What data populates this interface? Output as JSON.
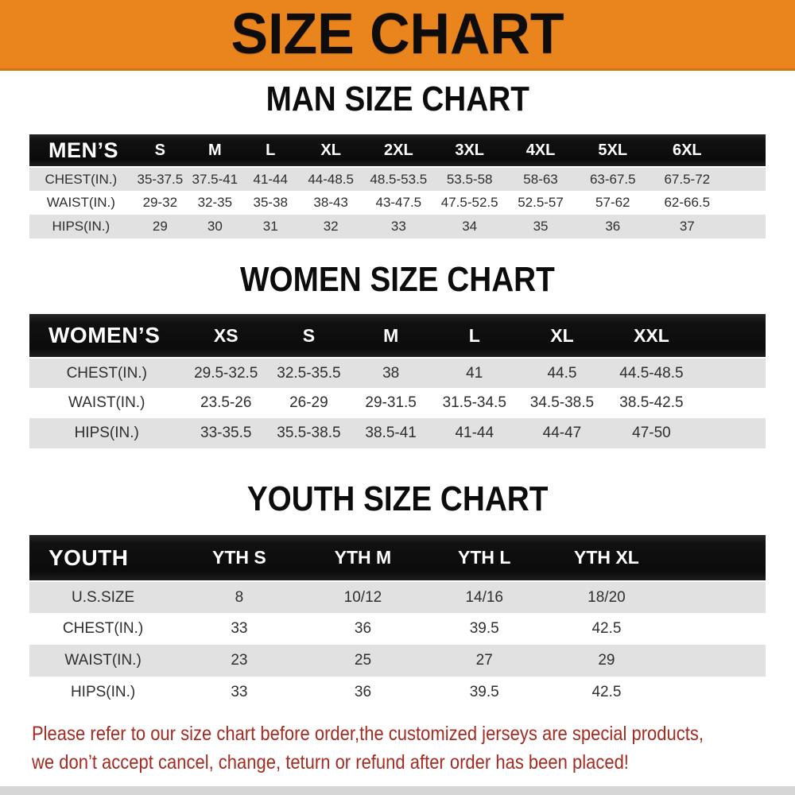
{
  "banner": {
    "title": "SIZE CHART"
  },
  "sections": [
    {
      "title": "MAN SIZE CHART",
      "table": {
        "header": {
          "label": "MEN’S",
          "columns": [
            "S",
            "M",
            "L",
            "XL",
            "2XL",
            "3XL",
            "4XL",
            "5XL",
            "6XL"
          ]
        },
        "rows": [
          {
            "label": "CHEST(IN.)",
            "values": [
              "35-37.5",
              "37.5-41",
              "41-44",
              "44-48.5",
              "48.5-53.5",
              "53.5-58",
              "58-63",
              "63-67.5",
              "67.5-72"
            ]
          },
          {
            "label": "WAIST(IN.)",
            "values": [
              "29-32",
              "32-35",
              "35-38",
              "38-43",
              "43-47.5",
              "47.5-52.5",
              "52.5-57",
              "57-62",
              "62-66.5"
            ]
          },
          {
            "label": "HIPS(IN.)",
            "values": [
              "29",
              "30",
              "31",
              "32",
              "33",
              "34",
              "35",
              "36",
              "37"
            ]
          }
        ]
      }
    },
    {
      "title": "WOMEN SIZE CHART",
      "table": {
        "header": {
          "label": "WOMEN’S",
          "columns": [
            "XS",
            "S",
            "M",
            "L",
            "XL",
            "XXL"
          ]
        },
        "rows": [
          {
            "label": "CHEST(IN.)",
            "values": [
              "29.5-32.5",
              "32.5-35.5",
              "38",
              "41",
              "44.5",
              "44.5-48.5"
            ]
          },
          {
            "label": "WAIST(IN.)",
            "values": [
              "23.5-26",
              "26-29",
              "29-31.5",
              "31.5-34.5",
              "34.5-38.5",
              "38.5-42.5"
            ]
          },
          {
            "label": "HIPS(IN.)",
            "values": [
              "33-35.5",
              "35.5-38.5",
              "38.5-41",
              "41-44",
              "44-47",
              "47-50"
            ]
          }
        ]
      }
    },
    {
      "title": "YOUTH SIZE CHART",
      "table": {
        "header": {
          "label": "YOUTH",
          "columns": [
            "YTH S",
            "YTH M",
            "YTH L",
            "YTH XL"
          ]
        },
        "rows": [
          {
            "label": "U.S.SIZE",
            "values": [
              "8",
              "10/12",
              "14/16",
              "18/20"
            ]
          },
          {
            "label": "CHEST(IN.)",
            "values": [
              "33",
              "36",
              "39.5",
              "42.5"
            ]
          },
          {
            "label": "WAIST(IN.)",
            "values": [
              "23",
              "25",
              "27",
              "29"
            ]
          },
          {
            "label": "HIPS(IN.)",
            "values": [
              "33",
              "36",
              "39.5",
              "42.5"
            ]
          }
        ]
      }
    }
  ],
  "footer": {
    "line1": "Please refer to our size chart before order,the customized jerseys are special products,",
    "line2": "we don’t accept cancel, change, teturn or refund after order has been placed!"
  },
  "colors": {
    "banner_bg": "#EA851E",
    "banner_edge": "#CE7413",
    "header_bar_black": "#0b0b0b",
    "row_grey": "#E1E1E1",
    "footer_red": "#A32B22",
    "bottom_strip_grey": "#D6D6D6"
  }
}
